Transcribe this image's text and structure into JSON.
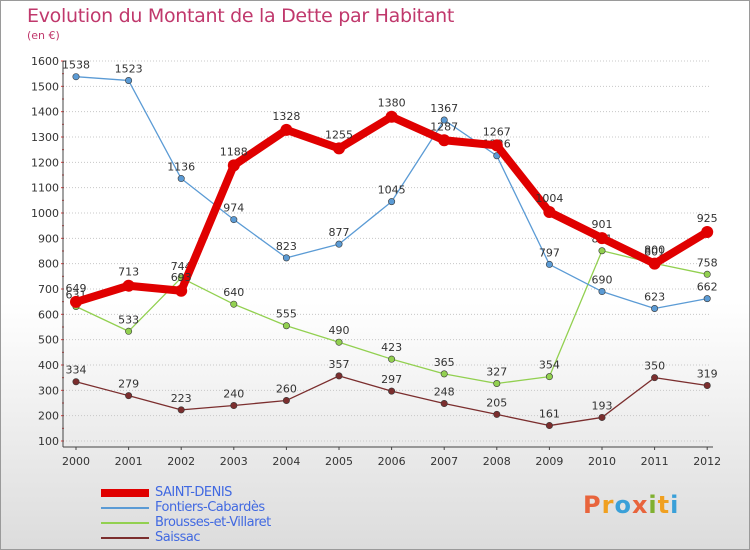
{
  "header": {
    "title": "Evolution du Montant de la Dette par Habitant",
    "subtitle": "(en €)"
  },
  "logo": {
    "text": "Proxiti",
    "colors": [
      "#e8643c",
      "#f0a020",
      "#3aa0d8",
      "#e8643c",
      "#80b030",
      "#f0a020",
      "#3aa0d8"
    ]
  },
  "chart_data": {
    "type": "line",
    "title": "Evolution du Montant de la Dette par Habitant",
    "subtitle": "(en €)",
    "xlabel": "",
    "ylabel": "",
    "x": [
      "2000",
      "2001",
      "2002",
      "2003",
      "2004",
      "2005",
      "2006",
      "2007",
      "2008",
      "2009",
      "2010",
      "2011",
      "2012"
    ],
    "ylim": [
      100,
      1600
    ],
    "yticks": [
      "100",
      "200",
      "300",
      "400",
      "500",
      "600",
      "700",
      "800",
      "900",
      "1000",
      "1100",
      "1200",
      "1300",
      "1400",
      "1500",
      "1600"
    ],
    "grid": "horizontal dotted",
    "legend_position": "bottom-left",
    "series": [
      {
        "name": "SAINT-DENIS",
        "color": "#e00000",
        "values": [
          649,
          713,
          693,
          1188,
          1328,
          1255,
          1380,
          1287,
          1267,
          1004,
          901,
          800,
          925
        ],
        "labels": [
          "649",
          "713",
          "693",
          "1188",
          "1328",
          "1255",
          "1380",
          "1287",
          "1267",
          "1004",
          "901",
          "800",
          "925"
        ]
      },
      {
        "name": "Fontiers-Cabardès",
        "color": "#5b9bd5",
        "values": [
          1538,
          1523,
          1136,
          974,
          823,
          877,
          1045,
          1367,
          1226,
          797,
          690,
          623,
          662
        ],
        "labels": [
          "1538",
          "1523",
          "1136",
          "974",
          "823",
          "877",
          "1045",
          "1367",
          "1226",
          "797",
          "690",
          "623",
          "662"
        ]
      },
      {
        "name": "Brousses-et-Villaret",
        "color": "#92d050",
        "values": [
          631,
          533,
          744,
          640,
          555,
          490,
          423,
          365,
          327,
          354,
          851,
          801,
          758
        ],
        "labels": [
          "631",
          "533",
          "744",
          "640",
          "555",
          "490",
          "423",
          "365",
          "327",
          "354",
          "851",
          "801",
          "758"
        ]
      },
      {
        "name": "Saissac",
        "color": "#7b2e2e",
        "values": [
          334,
          279,
          223,
          240,
          260,
          357,
          297,
          248,
          205,
          161,
          193,
          350,
          319
        ],
        "labels": [
          "334",
          "279",
          "223",
          "240",
          "260",
          "357",
          "297",
          "248",
          "205",
          "161",
          "193",
          "350",
          "319"
        ]
      }
    ]
  }
}
